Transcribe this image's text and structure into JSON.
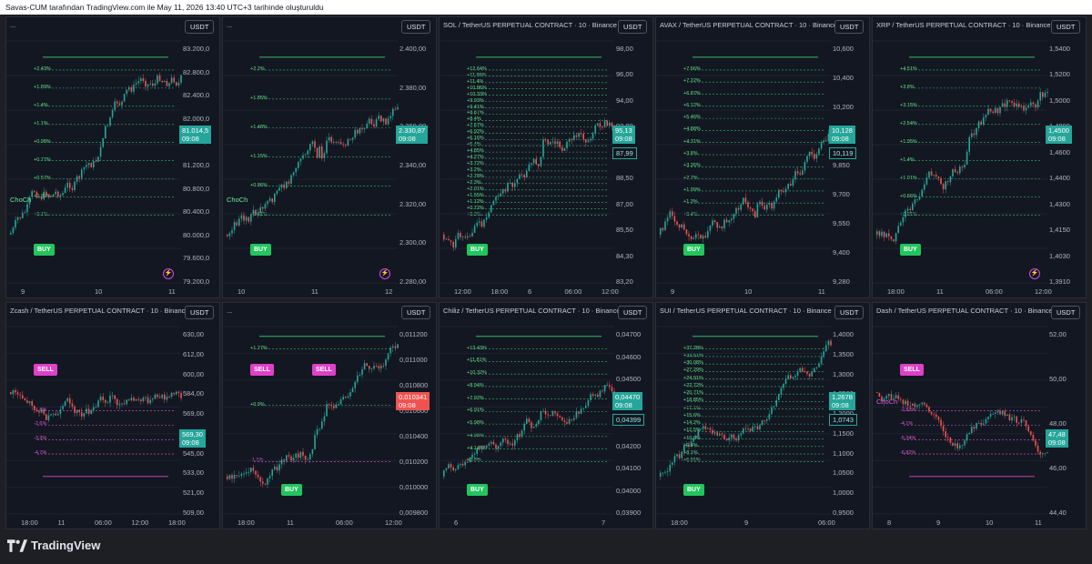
{
  "header": {
    "text": "Savas-CUM tarafından TradingView.com ile May 11, 2026 13:40 UTC+3 tarihinde oluşturuldu"
  },
  "footer": {
    "brand": "TradingView"
  },
  "colors": {
    "up": "#26a69a",
    "down": "#ef5350",
    "buy": "#22c55e",
    "sell": "#e040c8",
    "bg": "#131722"
  },
  "panels": [
    {
      "title": "...",
      "currency": "USDT",
      "price": "81.014,5",
      "time": "09:08",
      "tag_color": "#26a69a",
      "yaxis": [
        "83.200,0",
        "82.800,0",
        "82.400,0",
        "82.000,0",
        "81.600,0",
        "81.200,0",
        "80.800,0",
        "80.400,0",
        "80.000,0",
        "79.600,0",
        "79.200,0"
      ],
      "xaxis": [
        "9",
        "10",
        "11"
      ],
      "levels": [
        "+2.43%",
        "+1.89%",
        "+1.4%",
        "+1.1%",
        "+0.98%",
        "+0.77%",
        "+0.57%",
        "+0.39%",
        "+0.1%"
      ],
      "choch": "ChoCh",
      "signals": [
        "BUY"
      ]
    },
    {
      "title": "...",
      "currency": "USDT",
      "price": "2.330,87",
      "time": "09:08",
      "tag_color": "#26a69a",
      "yaxis": [
        "2.400,00",
        "2.380,00",
        "2.360,00",
        "2.340,00",
        "2.320,00",
        "2.300,00",
        "2.280,00"
      ],
      "xaxis": [
        "10",
        "11",
        "12"
      ],
      "levels": [
        "+2.2%",
        "+1.85%",
        "+1.48%",
        "+1.15%",
        "+0.86%",
        "+0.61%"
      ],
      "choch": "ChoCh",
      "signals": [
        "BUY"
      ]
    },
    {
      "title": "SOL / TetherUS PERPETUAL CONTRACT · 10 · Binance",
      "currency": "USDT",
      "price": "95,13",
      "time": "09:08",
      "tag_color": "#26a69a",
      "price2": "87,99",
      "yaxis": [
        "98,00",
        "96,00",
        "94,00",
        "92,00",
        "90,00",
        "88,50",
        "87,00",
        "85,50",
        "84,30",
        "83,20"
      ],
      "xaxis": [
        "12:00",
        "18:00",
        "6",
        "06:00",
        "12:00"
      ],
      "levels": [
        "+12.64%",
        "+11.99%",
        "+11.4%",
        "+10.86%",
        "+10.33%",
        "+9.93%",
        "+9.41%",
        "+8.87%",
        "+8.4%",
        "+7.67%",
        "+6.92%",
        "+6.16%",
        "+5.4%",
        "+4.85%",
        "+4.27%",
        "+3.72%",
        "+3.2%",
        "+2.78%",
        "+2.3%",
        "+2.01%",
        "+1.55%",
        "+1.12%",
        "+0.72%",
        "+0.3%"
      ],
      "signals": [
        "BUY"
      ]
    },
    {
      "title": "AVAX / TetherUS PERPETUAL CONTRACT · 10 · Binance",
      "currency": "USDT",
      "price": "10,128",
      "time": "09:08",
      "tag_color": "#26a69a",
      "price2": "10,119",
      "yaxis": [
        "10,600",
        "10,400",
        "10,200",
        "10,000",
        "9,850",
        "9,700",
        "9,550",
        "9,400",
        "9,280"
      ],
      "xaxis": [
        "9",
        "10",
        "11"
      ],
      "levels": [
        "+7.66%",
        "+7.22%",
        "+6.87%",
        "+6.12%",
        "+5.46%",
        "+4.88%",
        "+4.31%",
        "+3.8%",
        "+3.26%",
        "+2.7%",
        "+1.99%",
        "+1.3%",
        "+0.4%"
      ],
      "signals": [
        "BUY"
      ]
    },
    {
      "title": "XRP / TetherUS PERPETUAL CONTRACT · 10 · Binance",
      "currency": "USDT",
      "price": "1,4500",
      "time": "09:08",
      "tag_color": "#26a69a",
      "yaxis": [
        "1,5400",
        "1,5200",
        "1,5000",
        "1,4800",
        "1,4600",
        "1,4400",
        "1,4300",
        "1,4150",
        "1,4030",
        "1,3910"
      ],
      "xaxis": [
        "18:00",
        "11",
        "06:00",
        "12:00"
      ],
      "levels": [
        "+4.51%",
        "+3.8%",
        "+3.15%",
        "+2.54%",
        "+1.95%",
        "+1.4%",
        "+1.01%",
        "+0.66%",
        "+0.31%"
      ],
      "signals": [
        "BUY"
      ]
    },
    {
      "title": "Zcash / TetherUS PERPETUAL CONTRACT · 10 · Binance",
      "currency": "USDT",
      "price": "569,30",
      "time": "09:08",
      "tag_color": "#26a69a",
      "yaxis": [
        "630,00",
        "612,00",
        "600,00",
        "584,00",
        "569,00",
        "557,00",
        "545,00",
        "533,00",
        "521,00",
        "509,00"
      ],
      "xaxis": [
        "18:00",
        "11",
        "06:00",
        "12:00",
        "18:00"
      ],
      "levels": [
        "-1.8%",
        "-2.6%",
        "-3.3%",
        "-4.7%"
      ],
      "signals": [
        "SELL"
      ]
    },
    {
      "title": "...",
      "currency": "USDT",
      "price": "0,010341",
      "time": "09:08",
      "tag_color": "#ef5350",
      "yaxis": [
        "0,011200",
        "0,011000",
        "0,010800",
        "0,010600",
        "0,010400",
        "0,010200",
        "0,010000",
        "0,009800"
      ],
      "xaxis": [
        "18:00",
        "11",
        "06:00",
        "12:00"
      ],
      "levels": [
        "+1.77%",
        "+0.9%",
        "-1.1%"
      ],
      "signals": [
        "SELL",
        "BUY",
        "SELL"
      ]
    },
    {
      "title": "Chiliz / TetherUS PERPETUAL CONTRACT · 10 · Binance",
      "currency": "USDT",
      "price": "0,04470",
      "time": "09:08",
      "tag_color": "#26a69a",
      "price2": "0,04399",
      "yaxis": [
        "0,04700",
        "0,04600",
        "0,04500",
        "0,04400",
        "0,04300",
        "0,04200",
        "0,04100",
        "0,04000",
        "0,03900"
      ],
      "xaxis": [
        "6",
        "7"
      ],
      "levels": [
        "+13.43%",
        "+11.81%",
        "+10.32%",
        "+8.94%",
        "+7.92%",
        "+6.91%",
        "+5.98%",
        "+4.98%",
        "+4.14%",
        "+2.8%"
      ],
      "signals": [
        "BUY"
      ]
    },
    {
      "title": "SUI / TetherUS PERPETUAL CONTRACT · 10 · Binance",
      "currency": "USDT",
      "price": "1,2678",
      "time": "09:08",
      "tag_color": "#26a69a",
      "price2": "1,0743",
      "yaxis": [
        "1,4000",
        "1,3500",
        "1,3000",
        "1,2500",
        "1,2000",
        "1,1500",
        "1,1000",
        "1,0500",
        "1,0000",
        "0,9500"
      ],
      "xaxis": [
        "18:00",
        "9",
        "06:00"
      ],
      "levels": [
        "+37.28%",
        "+33.51%",
        "+30.08%",
        "+27.29%",
        "+24.91%",
        "+22.72%",
        "+20.71%",
        "+18.85%",
        "+17.1%",
        "+15.6%",
        "+14.2%",
        "+12.5%",
        "+10.8%",
        "+9.4%",
        "+8.1%",
        "+6.91%"
      ],
      "signals": [
        "BUY"
      ]
    },
    {
      "title": "Dash / TetherUS PERPETUAL CONTRACT · 10 · Binance",
      "currency": "USDT",
      "price": "47,48",
      "time": "09:08",
      "tag_color": "#26a69a",
      "yaxis": [
        "52,00",
        "50,00",
        "48,00",
        "46,00",
        "44,40"
      ],
      "xaxis": [
        "8",
        "9",
        "10",
        "11"
      ],
      "levels": [
        "-2.82%",
        "-4.1%",
        "-5.34%",
        "-6.82%"
      ],
      "choch": "ChoCh",
      "signals": [
        "SELL"
      ]
    }
  ]
}
